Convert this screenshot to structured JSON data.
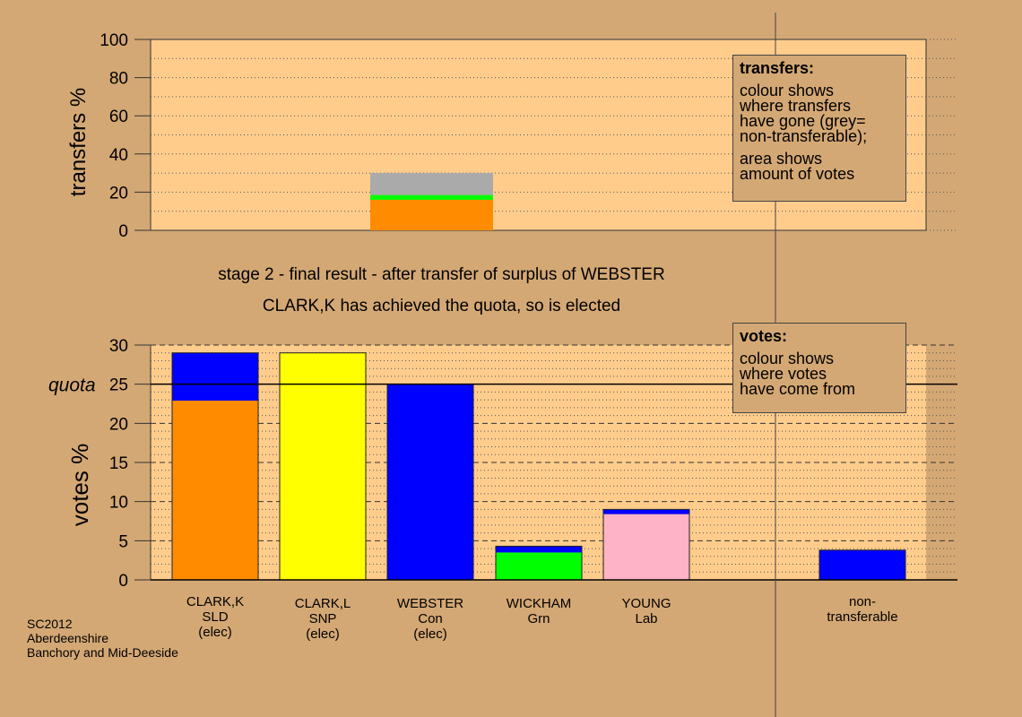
{
  "titles": {
    "line1": "stage 2 - final result - after transfer of surplus of WEBSTER",
    "line2": "CLARK,K has achieved the quota, so is elected"
  },
  "transfers_legend": {
    "heading": "transfers:",
    "lines1": [
      "colour shows",
      "where transfers",
      "have gone (grey=",
      "non-transferable);"
    ],
    "lines2": [
      "area shows",
      "amount of votes"
    ]
  },
  "votes_legend": {
    "heading": "votes:",
    "lines": [
      "colour shows",
      "where votes",
      "have come from"
    ]
  },
  "source": {
    "line1": "SC2012",
    "line2": "Aberdeenshire",
    "line3": "Banchory and Mid-Deeside"
  },
  "colors": {
    "background": "#d4a874",
    "plot_area": "#ffcc8c",
    "SLD": "#ff8c00",
    "SNP": "#ffff00",
    "Con": "#0000ff",
    "Grn": "#00ff00",
    "Lab": "#ffb3c6",
    "non_transferable": "#aaaaaa"
  },
  "chart_data": [
    {
      "type": "bar",
      "stacked": true,
      "title": "",
      "ylabel": "transfers %",
      "ylim": [
        0,
        100
      ],
      "yticks": [
        0,
        20,
        40,
        60,
        80,
        100
      ],
      "minor_grid_step": 10,
      "bars": [
        {
          "category_index": 2,
          "segments": [
            {
              "name": "SLD",
              "value": 16,
              "color": "#ff8c00"
            },
            {
              "name": "Grn",
              "value": 2.5,
              "color": "#00ff00"
            },
            {
              "name": "non-transferable",
              "value": 11.5,
              "color": "#aaaaaa"
            }
          ]
        }
      ]
    },
    {
      "type": "bar",
      "stacked": true,
      "title": "",
      "ylabel": "votes %",
      "ylim": [
        0,
        30
      ],
      "yticks": [
        0,
        5,
        10,
        15,
        20,
        25,
        30
      ],
      "quota": 25,
      "quota_label": "quota",
      "categories": [
        {
          "lines": [
            "CLARK,K",
            "SLD",
            "(elec)"
          ]
        },
        {
          "lines": [
            "CLARK,L",
            "SNP",
            "(elec)"
          ]
        },
        {
          "lines": [
            "WEBSTER",
            "Con",
            "(elec)"
          ]
        },
        {
          "lines": [
            "WICKHAM",
            "Grn",
            ""
          ]
        },
        {
          "lines": [
            "YOUNG",
            "Lab",
            ""
          ]
        },
        {
          "lines": [
            "",
            "",
            ""
          ]
        },
        {
          "lines": [
            "non-",
            "transferable",
            ""
          ]
        }
      ],
      "bars": [
        {
          "category_index": 0,
          "segments": [
            {
              "name": "SLD",
              "value": 22.9,
              "color": "#ff8c00"
            },
            {
              "name": "Con",
              "value": 6.1,
              "color": "#0000ff"
            }
          ]
        },
        {
          "category_index": 1,
          "segments": [
            {
              "name": "SNP",
              "value": 29.0,
              "color": "#ffff00"
            }
          ]
        },
        {
          "category_index": 2,
          "segments": [
            {
              "name": "Con",
              "value": 25.0,
              "color": "#0000ff"
            }
          ]
        },
        {
          "category_index": 3,
          "segments": [
            {
              "name": "Grn",
              "value": 3.5,
              "color": "#00ff00"
            },
            {
              "name": "Con",
              "value": 0.8,
              "color": "#0000ff"
            }
          ]
        },
        {
          "category_index": 4,
          "segments": [
            {
              "name": "Lab",
              "value": 8.4,
              "color": "#ffb3c6"
            },
            {
              "name": "Con",
              "value": 0.6,
              "color": "#0000ff"
            }
          ]
        },
        {
          "category_index": 6,
          "segments": [
            {
              "name": "Con",
              "value": 3.8,
              "color": "#0000ff"
            }
          ]
        }
      ]
    }
  ]
}
